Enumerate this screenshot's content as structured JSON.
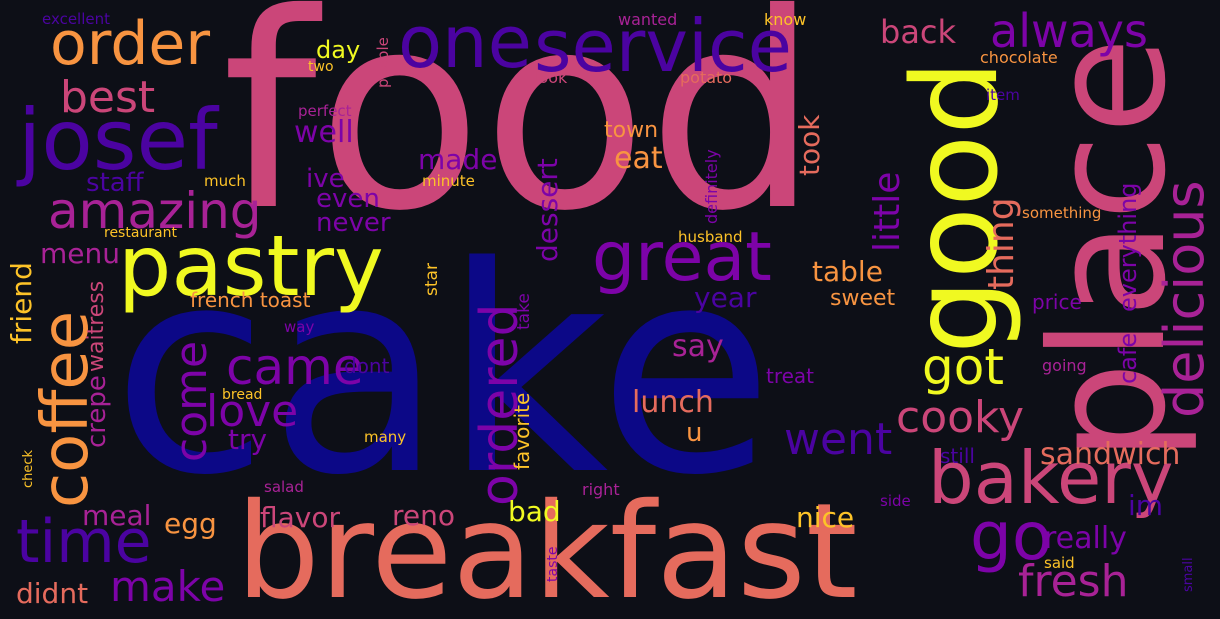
{
  "colors": {
    "background": "#0d0f17",
    "palette": [
      "#0c0887",
      "#4b03a1",
      "#7d03a8",
      "#a82296",
      "#cb4679",
      "#e56b5d",
      "#f89441",
      "#fdc328",
      "#f0f921"
    ]
  },
  "words": {
    "cake": "cake",
    "food": "food",
    "breakfast": "breakfast",
    "place": "place",
    "good": "good",
    "pastry": "pastry",
    "service": "service",
    "one": "one",
    "josef": "josef",
    "order": "order",
    "great": "great",
    "coffee": "coffee",
    "bakery": "bakery",
    "delicious": "delicious",
    "amazing": "amazing",
    "time": "time",
    "ordered": "ordered",
    "always": "always",
    "best": "best",
    "go": "go",
    "came": "came",
    "love": "love",
    "come": "come",
    "got": "got",
    "cooky": "cooky",
    "went": "went",
    "little": "little",
    "thing": "thing",
    "make": "make",
    "fresh": "fresh",
    "back": "back",
    "well": "well",
    "staff": "staff",
    "ive": "ive",
    "even": "even",
    "never": "never",
    "made": "made",
    "eat": "eat",
    "town": "town",
    "took": "took",
    "dessert": "dessert",
    "table": "table",
    "year": "year",
    "sweet": "sweet",
    "say": "say",
    "lunch": "lunch",
    "u": "u",
    "try": "try",
    "menu": "menu",
    "friend": "friend",
    "waitress": "waitress",
    "crepe": "crepe",
    "meal": "meal",
    "egg": "egg",
    "flavor": "flavor",
    "reno": "reno",
    "bad": "bad",
    "nice": "nice",
    "didnt": "didnt",
    "really": "really",
    "sandwich": "sandwich",
    "im": "im",
    "cafe": "cafe",
    "everything": "everything",
    "day": "day",
    "two": "two",
    "people": "people",
    "wanted": "wanted",
    "know": "know",
    "look": "look",
    "potato": "potato",
    "chocolate": "chocolate",
    "item": "item",
    "perfect": "perfect",
    "much": "much",
    "minute": "minute",
    "definitely": "definitely",
    "something": "something",
    "restaurant": "restaurant",
    "husband": "husband",
    "french_toast": "french toast",
    "star": "star",
    "take": "take",
    "price": "price",
    "way": "way",
    "dont": "dont",
    "favorite": "favorite",
    "treat": "treat",
    "going": "going",
    "bread": "bread",
    "many": "many",
    "still": "still",
    "check": "check",
    "salad": "salad",
    "right": "right",
    "side": "side",
    "taste": "taste",
    "said": "said",
    "small": "small",
    "excellent": "excellent"
  }
}
